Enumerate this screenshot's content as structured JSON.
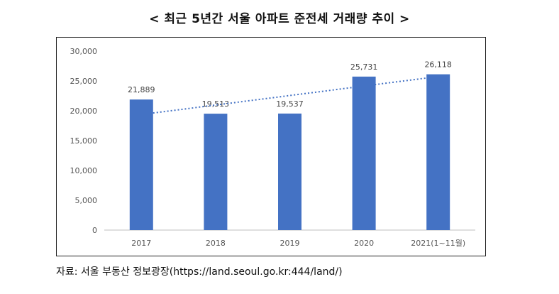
{
  "title": "< 최근 5년간 서울 아파트 준전세 거래량 추이 >",
  "source": "자료: 서울 부동산 정보광장(https://land.seoul.go.kr:444/land/)",
  "chart_data": {
    "type": "bar",
    "categories": [
      "2017",
      "2018",
      "2019",
      "2020",
      "2021(1~11월)"
    ],
    "values": [
      21889,
      19513,
      19537,
      25731,
      26118
    ],
    "value_labels": [
      "21,889",
      "19,513",
      "19,537",
      "25,731",
      "26,118"
    ],
    "y_ticks": [
      "0",
      "5,000",
      "10,000",
      "15,000",
      "20,000",
      "25,000",
      "30,000"
    ],
    "ylim": [
      0,
      30000
    ],
    "bar_color": "#4472C4",
    "trendline": {
      "style": "dotted",
      "color": "#4472C4"
    },
    "grid": false,
    "legend": "none"
  }
}
